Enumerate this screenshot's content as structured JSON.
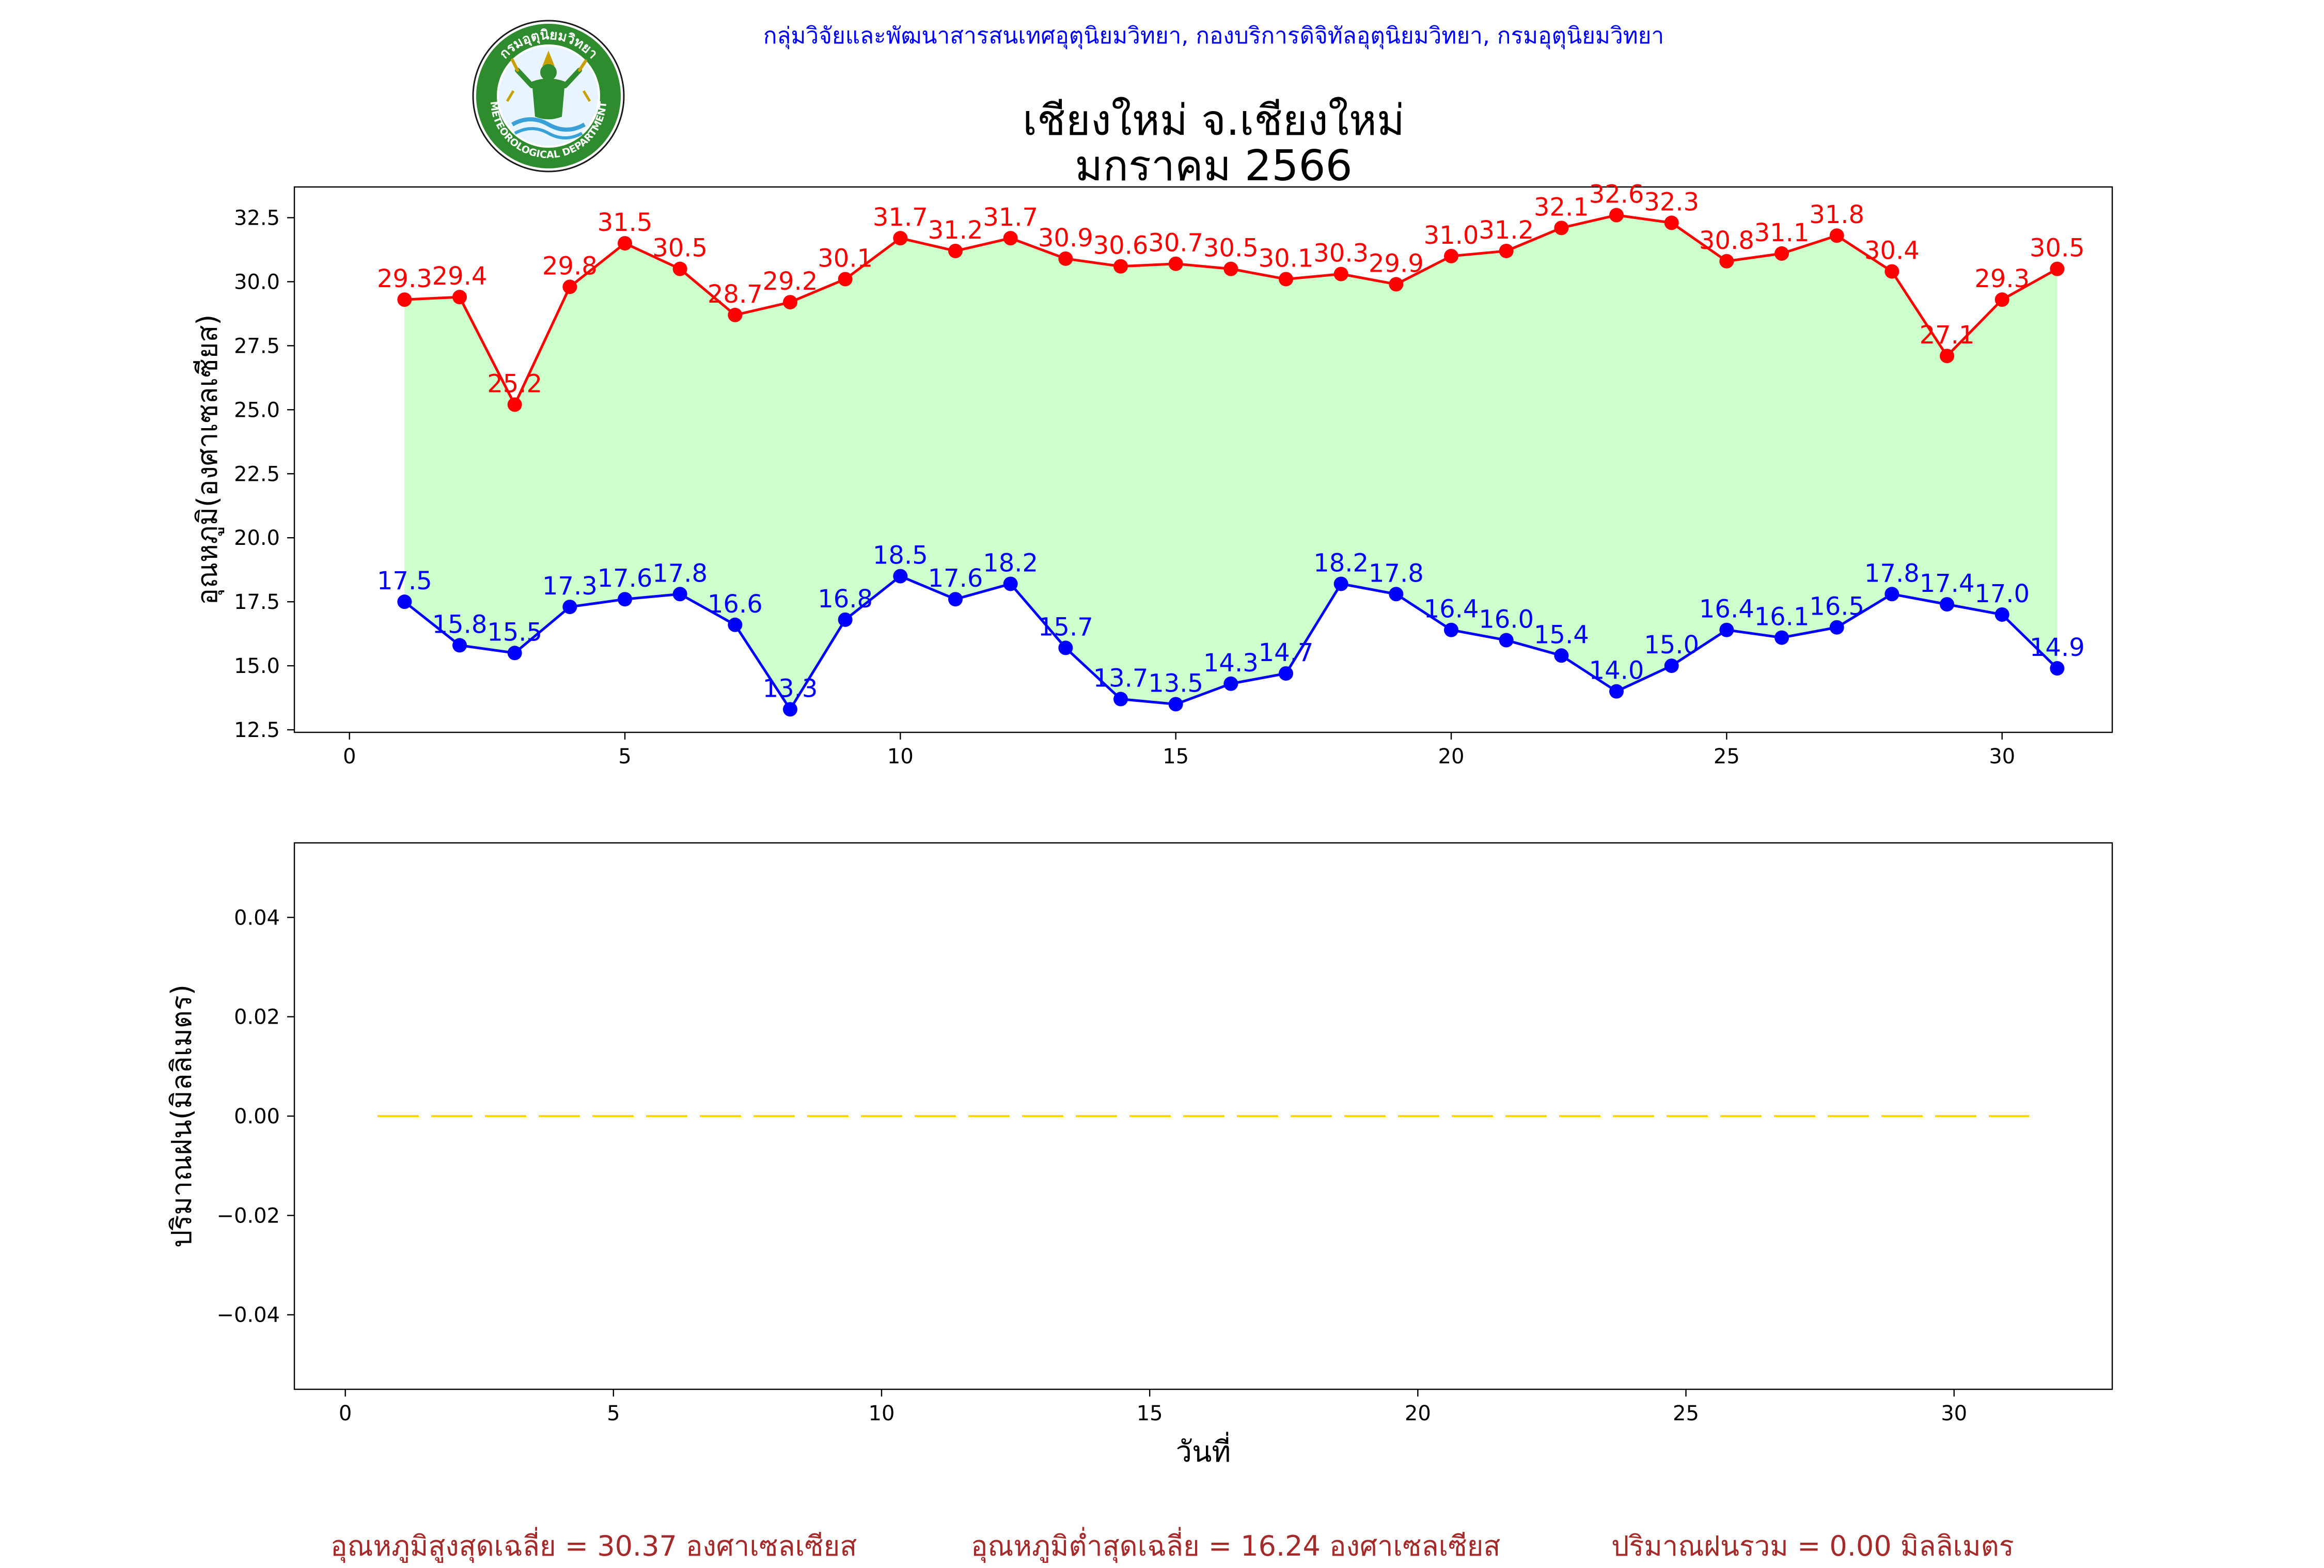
{
  "header": {
    "org_line": "กลุ่มวิจัยและพัฒนาสารสนเทศอุตุนิยมวิทยา, กองบริการดิจิทัลอุตุนิยมวิทยา, กรมอุตุนิยมวิทยา",
    "title_line1": "เชียงใหม่ จ.เชียงใหม่",
    "title_line2": "มกราคม 2566",
    "logo_text_top": "กรมอุตุนิยมวิทยา",
    "logo_text_bottom": "METEOROLOGICAL DEPARTMENT"
  },
  "colors": {
    "max_line": "#ff0000",
    "min_line": "#0000ff",
    "fill": "#ccffcc",
    "rain_line": "#ffd700",
    "footer_text": "#a52a2a"
  },
  "chart_data": [
    {
      "type": "line",
      "title": "",
      "xlabel": "",
      "ylabel": "อุณหภูมิ(องศาเซลเซียส)",
      "xlim": [
        -1,
        32
      ],
      "ylim": [
        12.4,
        33.7
      ],
      "xticks": [
        0,
        5,
        10,
        15,
        20,
        25,
        30
      ],
      "yticks": [
        12.5,
        15.0,
        17.5,
        20.0,
        22.5,
        25.0,
        27.5,
        30.0,
        32.5
      ],
      "ytick_labels": [
        "12.5",
        "15.0",
        "17.5",
        "20.0",
        "22.5",
        "25.0",
        "27.5",
        "30.0",
        "32.5"
      ],
      "fill_between": true,
      "x": [
        1,
        2,
        3,
        4,
        5,
        6,
        7,
        8,
        9,
        10,
        11,
        12,
        13,
        14,
        15,
        16,
        17,
        18,
        19,
        20,
        21,
        22,
        23,
        24,
        25,
        26,
        27,
        28,
        29,
        30,
        31
      ],
      "series": [
        {
          "key": "max",
          "values": [
            29.3,
            29.4,
            25.2,
            29.8,
            31.5,
            30.5,
            28.7,
            29.2,
            30.1,
            31.7,
            31.2,
            31.7,
            30.9,
            30.6,
            30.7,
            30.5,
            30.1,
            30.3,
            29.9,
            31.0,
            31.2,
            32.1,
            32.6,
            32.3,
            30.8,
            31.1,
            31.8,
            30.4,
            27.1,
            29.3,
            30.5
          ],
          "labels": [
            "29.3",
            "29.4",
            "25.2",
            "29.8",
            "31.5",
            "30.5",
            "28.7",
            "29.2",
            "30.1",
            "31.7",
            "31.2",
            "31.7",
            "30.9",
            "30.6",
            "30.7",
            "30.5",
            "30.1",
            "30.3",
            "29.9",
            "31.0",
            "31.2",
            "32.1",
            "32.6",
            "32.3",
            "30.8",
            "31.1",
            "31.8",
            "30.4",
            "27.1",
            "29.3",
            "30.5"
          ]
        },
        {
          "key": "min",
          "values": [
            17.5,
            15.8,
            15.5,
            17.3,
            17.6,
            17.8,
            16.6,
            13.3,
            16.8,
            18.5,
            17.6,
            18.2,
            15.7,
            13.7,
            13.5,
            14.3,
            14.7,
            18.2,
            17.8,
            16.4,
            16.0,
            15.4,
            14.0,
            15.0,
            16.4,
            16.1,
            16.5,
            17.8,
            17.4,
            17.0,
            14.9
          ],
          "labels": [
            "17.5",
            "15.8",
            "15.5",
            "17.3",
            "17.6",
            "17.8",
            "16.6",
            "13.3",
            "16.8",
            "18.5",
            "17.6",
            "18.2",
            "15.7",
            "13.7",
            "13.5",
            "14.3",
            "14.7",
            "18.2",
            "17.8",
            "16.4",
            "16.0",
            "15.4",
            "14.0",
            "15.0",
            "16.4",
            "16.1",
            "16.5",
            "17.8",
            "17.4",
            "17.0",
            "14.9"
          ]
        }
      ]
    },
    {
      "type": "line",
      "title": "",
      "xlabel": "วันที่",
      "ylabel": "ปริมาณฝน(มิลลิเมตร)",
      "xlim": [
        -0.95,
        32.95
      ],
      "ylim": [
        -0.055,
        0.055
      ],
      "xticks": [
        0,
        5,
        10,
        15,
        20,
        25,
        30
      ],
      "yticks": [
        -0.04,
        -0.02,
        0.0,
        0.02,
        0.04
      ],
      "ytick_labels": [
        "−0.04",
        "−0.02",
        "0.00",
        "0.02",
        "0.04"
      ],
      "line_style": "dashed",
      "x": [
        0.6,
        31.4
      ],
      "series": [
        {
          "key": "rain",
          "values": [
            0.0,
            0.0
          ]
        }
      ]
    }
  ],
  "footer": {
    "avg_max": "อุณหภูมิสูงสุดเฉลี่ย = 30.37 องศาเซลเซียส",
    "avg_min": "อุณหภูมิต่ำสุดเฉลี่ย = 16.24 องศาเซลเซียส",
    "rain_total": "ปริมาณฝนรวม = 0.00 มิลลิเมตร"
  }
}
